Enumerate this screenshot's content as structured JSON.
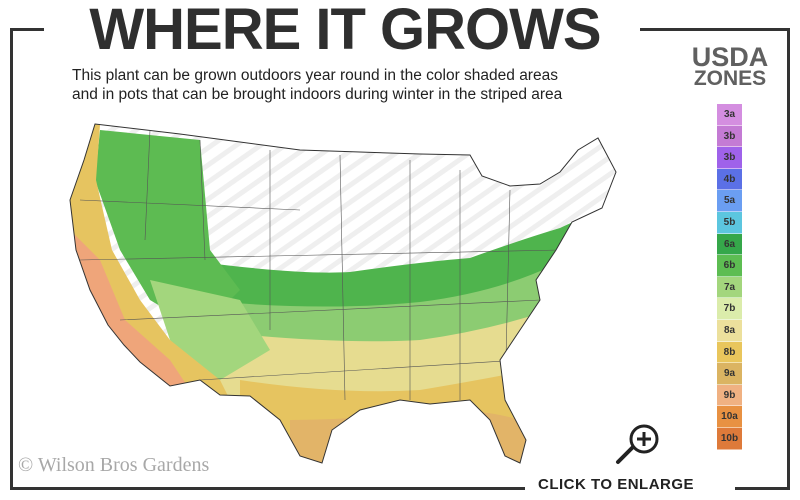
{
  "header": {
    "title": "WHERE IT GROWS",
    "subtitle_line1": "This plant can be grown outdoors year round in the color shaded areas",
    "subtitle_line2": "and in pots that can be brought indoors during winter in the striped area"
  },
  "legend": {
    "title_line1": "USDA",
    "title_line2": "ZONES",
    "zones": [
      {
        "label": "3a",
        "color": "#d48ee0"
      },
      {
        "label": "3b",
        "color": "#c47bd4"
      },
      {
        "label": "3b",
        "color": "#9f62ea"
      },
      {
        "label": "4b",
        "color": "#5b70e6"
      },
      {
        "label": "5a",
        "color": "#6b9ef2"
      },
      {
        "label": "5b",
        "color": "#5cc6df"
      },
      {
        "label": "6a",
        "color": "#35a74a"
      },
      {
        "label": "6b",
        "color": "#5dbd52"
      },
      {
        "label": "7a",
        "color": "#a3d67d"
      },
      {
        "label": "7b",
        "color": "#dbecab"
      },
      {
        "label": "8a",
        "color": "#ece09c"
      },
      {
        "label": "8b",
        "color": "#e9c65c"
      },
      {
        "label": "9a",
        "color": "#dbb462"
      },
      {
        "label": "9b",
        "color": "#f0b182"
      },
      {
        "label": "10a",
        "color": "#e89142"
      },
      {
        "label": "10b",
        "color": "#de7a3a"
      }
    ]
  },
  "watermark": "© Wilson Bros Gardens",
  "enlarge_label": "CLICK TO ENLARGE",
  "icons": {
    "enlarge": "magnifier-plus-icon"
  }
}
